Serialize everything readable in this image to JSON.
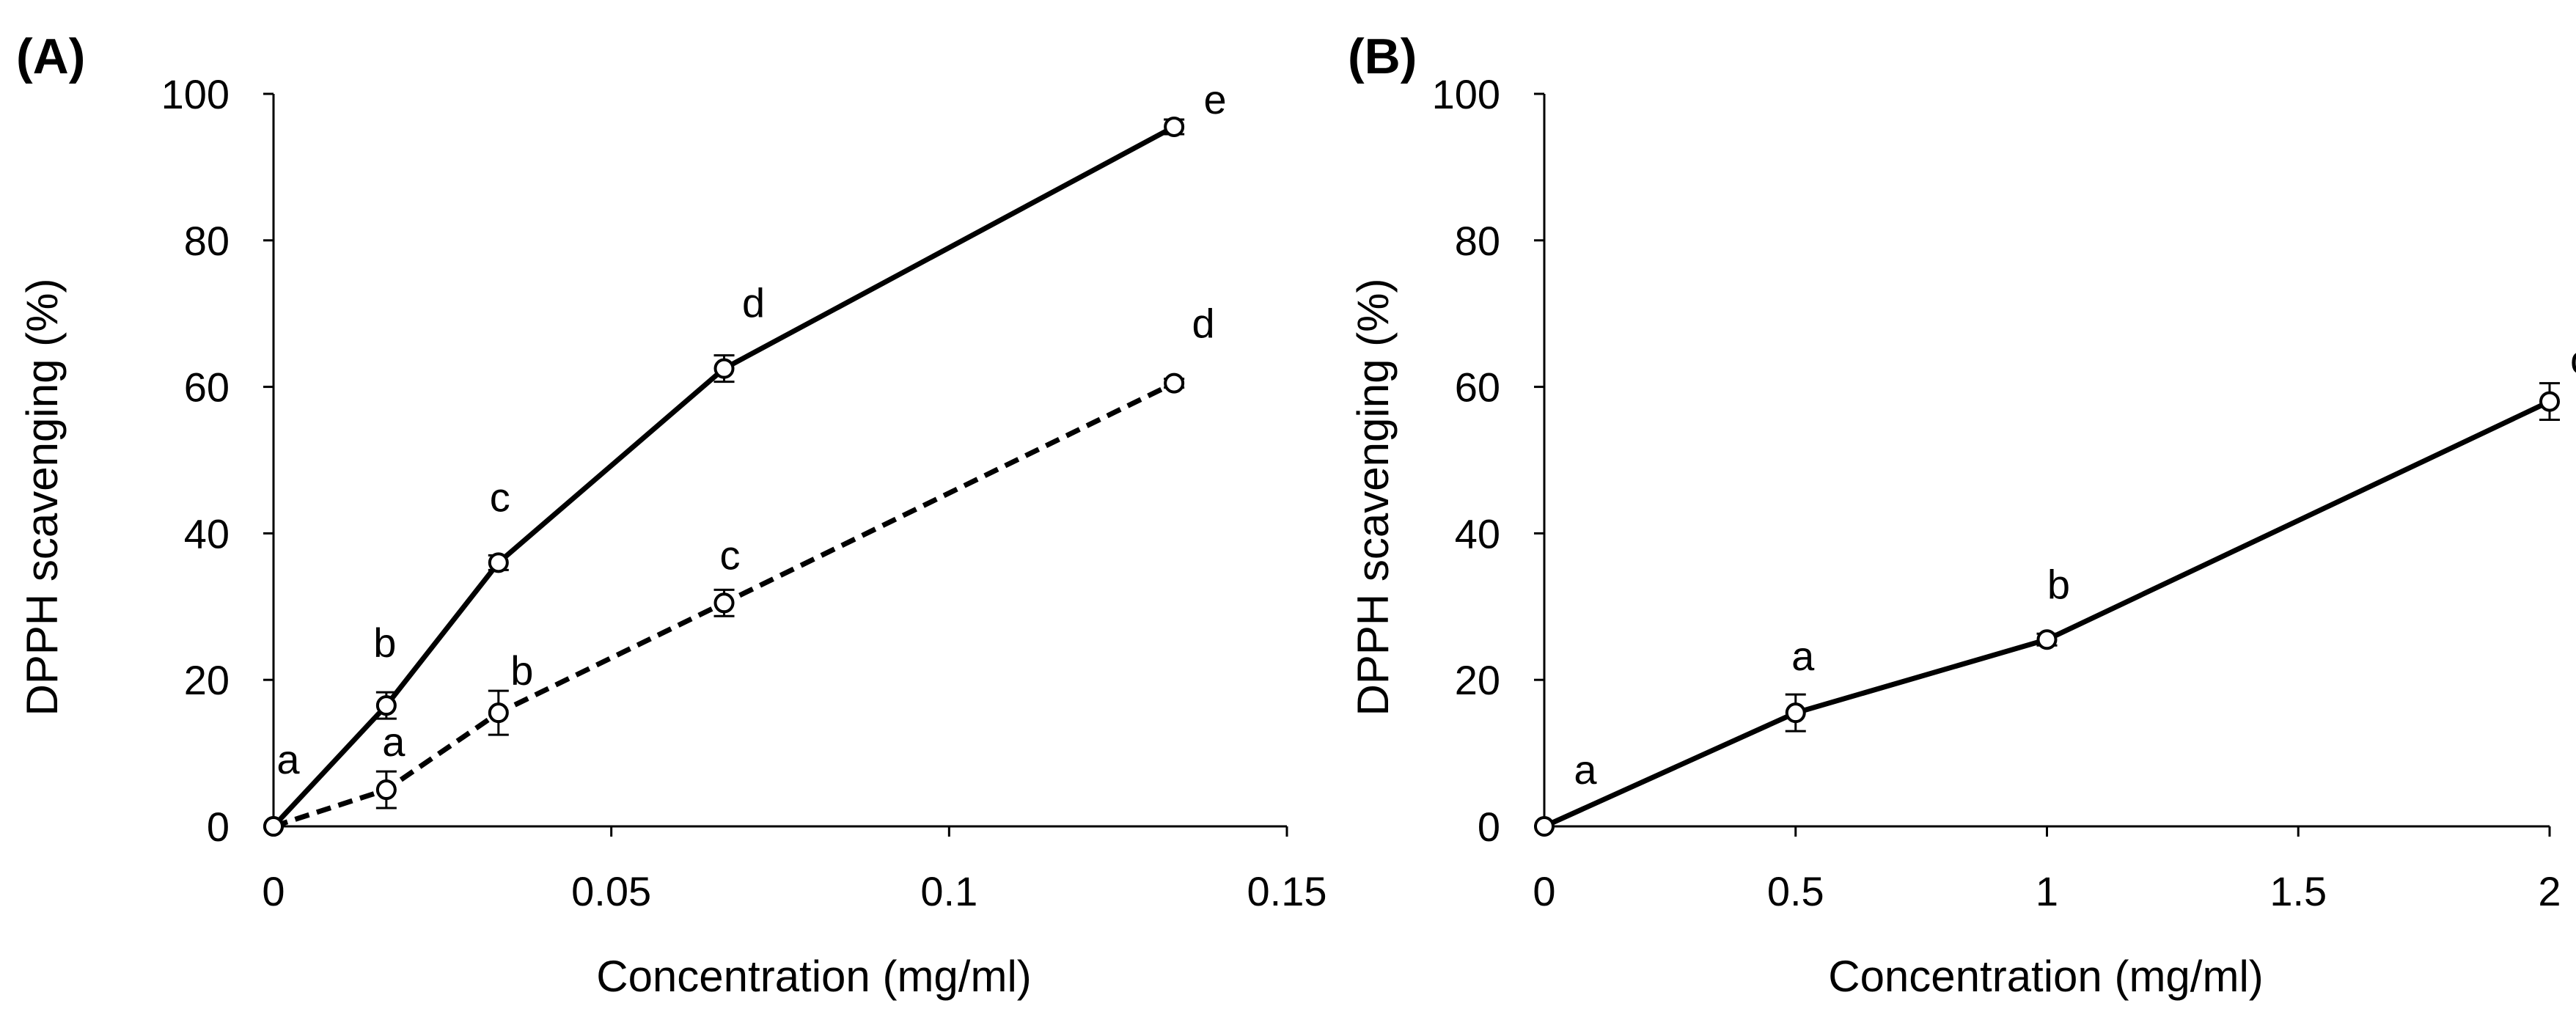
{
  "figure": {
    "panels": [
      "(A)",
      "(B)"
    ]
  },
  "chart_data": [
    {
      "type": "line",
      "panel": "(A)",
      "xlabel": "Concentration (mg/ml)",
      "ylabel": "DPPH scavenging (%)",
      "xlim": [
        0,
        0.15
      ],
      "ylim": [
        0,
        100
      ],
      "x_ticks": [
        0,
        0.05,
        0.1,
        0.15
      ],
      "x_tick_labels": [
        "0",
        "0.05",
        "0.1",
        "0.15"
      ],
      "y_ticks": [
        0,
        20,
        40,
        60,
        80,
        100
      ],
      "y_tick_labels": [
        "0",
        "20",
        "40",
        "60",
        "80",
        "100"
      ],
      "grid": false,
      "legend": null,
      "series": [
        {
          "name": "solid",
          "style": "solid",
          "color": "#000000",
          "marker": "open-circle",
          "x": [
            0,
            0.0167,
            0.0333,
            0.0667,
            0.1333
          ],
          "values": [
            0,
            16.5,
            36,
            62.5,
            95.5
          ],
          "error": [
            0,
            1.8,
            1.0,
            1.8,
            1.0
          ],
          "labels": [
            "a",
            "b",
            "c",
            "d",
            "e"
          ]
        },
        {
          "name": "dashed",
          "style": "dashed",
          "color": "#000000",
          "marker": "open-circle",
          "x": [
            0,
            0.0167,
            0.0333,
            0.0667,
            0.1333
          ],
          "values": [
            0,
            5,
            15.5,
            30.5,
            60.5
          ],
          "error": [
            0,
            2.5,
            3.0,
            1.8,
            0.6
          ],
          "labels": [
            "a",
            "a",
            "b",
            "c",
            "d"
          ]
        }
      ]
    },
    {
      "type": "line",
      "panel": "(B)",
      "xlabel": "Concentration (mg/ml)",
      "ylabel": "DPPH scavenging (%)",
      "xlim": [
        0,
        2
      ],
      "ylim": [
        0,
        100
      ],
      "x_ticks": [
        0,
        0.5,
        1,
        1.5,
        2
      ],
      "x_tick_labels": [
        "0",
        "0.5",
        "1",
        "1.5",
        "2"
      ],
      "y_ticks": [
        0,
        20,
        40,
        60,
        80,
        100
      ],
      "y_tick_labels": [
        "0",
        "20",
        "40",
        "60",
        "80",
        "100"
      ],
      "grid": false,
      "legend": null,
      "series": [
        {
          "name": "solid",
          "style": "solid",
          "color": "#000000",
          "marker": "open-circle",
          "x": [
            0,
            0.5,
            1,
            2
          ],
          "values": [
            0,
            15.5,
            25.5,
            58
          ],
          "error": [
            0,
            2.5,
            0.8,
            2.5
          ],
          "labels": [
            "a",
            "a",
            "b",
            "c"
          ]
        }
      ]
    }
  ]
}
